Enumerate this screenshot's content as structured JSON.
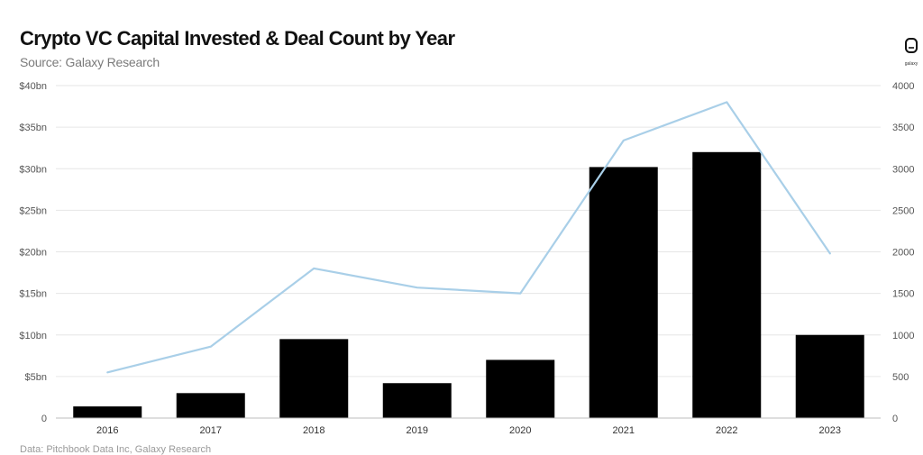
{
  "header": {
    "title": "Crypto VC Capital Invested & Deal Count by Year",
    "subtitle": "Source: Galaxy Research"
  },
  "logo": {
    "icon": "galaxy-logo-icon",
    "name": "galaxy"
  },
  "footnote": "Data: Pitchbook Data Inc, Galaxy Research",
  "colors": {
    "bars": "#000000",
    "line": "#a9cfe8",
    "grid": "#e6e6e6"
  },
  "chart_data": {
    "type": "bar",
    "title": "Crypto VC Capital Invested & Deal Count by Year",
    "subtitle": "Source: Galaxy Research",
    "categories": [
      "2016",
      "2017",
      "2018",
      "2019",
      "2020",
      "2021",
      "2022",
      "2023"
    ],
    "series": [
      {
        "type": "bar",
        "axis": "left",
        "values": [
          1.4,
          3.0,
          9.5,
          4.2,
          7.0,
          30.2,
          32.0,
          10.0
        ]
      },
      {
        "type": "line",
        "axis": "right",
        "values": [
          550,
          860,
          1800,
          1570,
          1500,
          3340,
          3800,
          1980
        ]
      }
    ],
    "y_left": {
      "min": 0,
      "max": 40,
      "ticks": [
        "0",
        "$5bn",
        "$10bn",
        "$15bn",
        "$20bn",
        "$25bn",
        "$30bn",
        "$35bn",
        "$40bn"
      ]
    },
    "y_right": {
      "min": 0,
      "max": 4000,
      "ticks": [
        "0",
        "500",
        "1000",
        "1500",
        "2000",
        "2500",
        "3000",
        "3500",
        "4000"
      ]
    },
    "grid": true,
    "legend": "none"
  }
}
